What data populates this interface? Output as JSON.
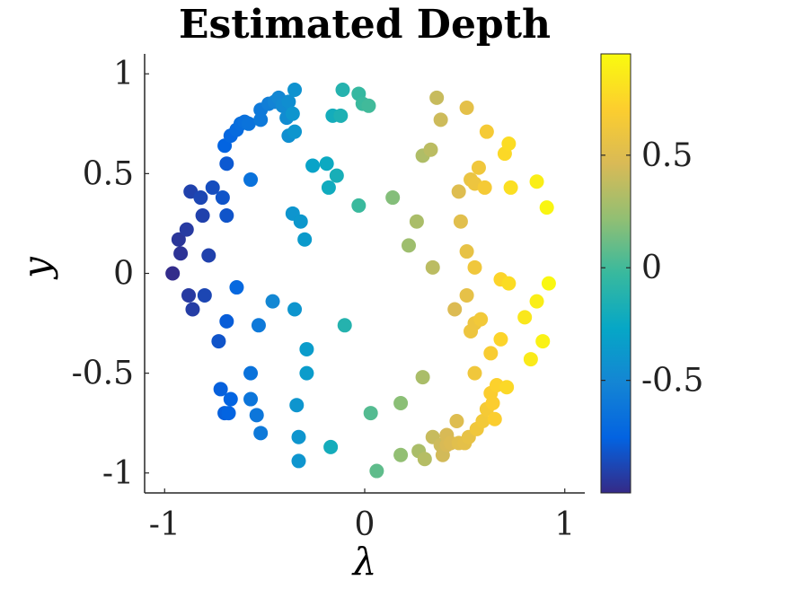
{
  "chart_data": {
    "type": "scatter",
    "title": "Estimated Depth",
    "xlabel": "λ",
    "ylabel": "y",
    "xlim": [
      -1.1,
      1.1
    ],
    "ylim": [
      -1.1,
      1.1
    ],
    "xticks": [
      -1,
      0,
      1
    ],
    "xtick_labels": [
      "-1",
      "0",
      "1"
    ],
    "yticks": [
      -1,
      -0.5,
      0,
      0.5,
      1
    ],
    "ytick_labels": [
      "-1",
      "-0.5",
      "0",
      "0.5",
      "1"
    ],
    "colorbar": {
      "range": [
        -1,
        0.95
      ],
      "ticks": [
        -0.5,
        0,
        0.5
      ],
      "tick_labels": [
        "-0.5",
        "0",
        "0.5"
      ],
      "colormap": "parula"
    },
    "grid": false,
    "points": [
      {
        "x": -0.96,
        "y": 0.0,
        "c": -0.99
      },
      {
        "x": -0.93,
        "y": 0.17,
        "c": -0.95
      },
      {
        "x": -0.92,
        "y": 0.1,
        "c": -0.96
      },
      {
        "x": -0.89,
        "y": 0.22,
        "c": -0.93
      },
      {
        "x": -0.88,
        "y": -0.11,
        "c": -0.93
      },
      {
        "x": -0.86,
        "y": -0.18,
        "c": -0.92
      },
      {
        "x": -0.87,
        "y": 0.41,
        "c": -0.9
      },
      {
        "x": -0.82,
        "y": 0.38,
        "c": -0.88
      },
      {
        "x": -0.81,
        "y": 0.29,
        "c": -0.9
      },
      {
        "x": -0.8,
        "y": -0.11,
        "c": -0.88
      },
      {
        "x": -0.78,
        "y": 0.09,
        "c": -0.9
      },
      {
        "x": -0.76,
        "y": 0.43,
        "c": -0.85
      },
      {
        "x": -0.73,
        "y": -0.34,
        "c": -0.82
      },
      {
        "x": -0.71,
        "y": 0.38,
        "c": -0.82
      },
      {
        "x": -0.69,
        "y": 0.29,
        "c": -0.82
      },
      {
        "x": -0.69,
        "y": 0.55,
        "c": -0.8
      },
      {
        "x": -0.69,
        "y": -0.24,
        "c": -0.78
      },
      {
        "x": -0.72,
        "y": -0.58,
        "c": -0.77
      },
      {
        "x": -0.7,
        "y": -0.7,
        "c": -0.77
      },
      {
        "x": -0.68,
        "y": -0.7,
        "c": -0.75
      },
      {
        "x": -0.67,
        "y": -0.63,
        "c": -0.75
      },
      {
        "x": -0.64,
        "y": -0.07,
        "c": -0.72
      },
      {
        "x": -0.7,
        "y": 0.64,
        "c": -0.75
      },
      {
        "x": -0.67,
        "y": 0.69,
        "c": -0.73
      },
      {
        "x": -0.64,
        "y": 0.72,
        "c": -0.7
      },
      {
        "x": -0.62,
        "y": 0.75,
        "c": -0.68
      },
      {
        "x": -0.6,
        "y": 0.76,
        "c": -0.66
      },
      {
        "x": -0.58,
        "y": 0.75,
        "c": -0.64
      },
      {
        "x": -0.57,
        "y": 0.47,
        "c": -0.65
      },
      {
        "x": -0.57,
        "y": -0.5,
        "c": -0.65
      },
      {
        "x": -0.57,
        "y": -0.63,
        "c": -0.63
      },
      {
        "x": -0.54,
        "y": -0.71,
        "c": -0.62
      },
      {
        "x": -0.52,
        "y": -0.8,
        "c": -0.6
      },
      {
        "x": -0.53,
        "y": -0.26,
        "c": -0.6
      },
      {
        "x": -0.52,
        "y": 0.77,
        "c": -0.6
      },
      {
        "x": -0.52,
        "y": 0.82,
        "c": -0.6
      },
      {
        "x": -0.48,
        "y": 0.85,
        "c": -0.56
      },
      {
        "x": -0.45,
        "y": 0.86,
        "c": -0.53
      },
      {
        "x": -0.43,
        "y": 0.88,
        "c": -0.5
      },
      {
        "x": -0.41,
        "y": 0.84,
        "c": -0.48
      },
      {
        "x": -0.39,
        "y": 0.78,
        "c": -0.46
      },
      {
        "x": -0.38,
        "y": 0.69,
        "c": -0.44
      },
      {
        "x": -0.38,
        "y": 0.86,
        "c": -0.45
      },
      {
        "x": -0.35,
        "y": 0.92,
        "c": -0.42
      },
      {
        "x": -0.35,
        "y": 0.71,
        "c": -0.4
      },
      {
        "x": -0.36,
        "y": 0.8,
        "c": -0.4
      },
      {
        "x": -0.36,
        "y": 0.3,
        "c": -0.4
      },
      {
        "x": -0.32,
        "y": 0.26,
        "c": -0.38
      },
      {
        "x": -0.3,
        "y": 0.17,
        "c": -0.36
      },
      {
        "x": -0.35,
        "y": -0.18,
        "c": -0.4
      },
      {
        "x": -0.46,
        "y": -0.14,
        "c": -0.5
      },
      {
        "x": -0.34,
        "y": -0.66,
        "c": -0.4
      },
      {
        "x": -0.33,
        "y": -0.82,
        "c": -0.4
      },
      {
        "x": -0.33,
        "y": -0.94,
        "c": -0.4
      },
      {
        "x": -0.29,
        "y": -0.38,
        "c": -0.35
      },
      {
        "x": -0.29,
        "y": -0.5,
        "c": -0.35
      },
      {
        "x": -0.26,
        "y": 0.54,
        "c": -0.3
      },
      {
        "x": -0.19,
        "y": 0.55,
        "c": -0.24
      },
      {
        "x": -0.18,
        "y": 0.43,
        "c": -0.22
      },
      {
        "x": -0.14,
        "y": 0.49,
        "c": -0.18
      },
      {
        "x": -0.16,
        "y": 0.79,
        "c": -0.2
      },
      {
        "x": -0.12,
        "y": 0.79,
        "c": -0.15
      },
      {
        "x": -0.11,
        "y": 0.92,
        "c": -0.12
      },
      {
        "x": -0.17,
        "y": -0.87,
        "c": -0.2
      },
      {
        "x": -0.1,
        "y": -0.26,
        "c": -0.12
      },
      {
        "x": -0.03,
        "y": 0.34,
        "c": -0.02
      },
      {
        "x": -0.03,
        "y": 0.9,
        "c": -0.04
      },
      {
        "x": -0.01,
        "y": 0.85,
        "c": -0.02
      },
      {
        "x": 0.02,
        "y": 0.84,
        "c": 0.0
      },
      {
        "x": 0.03,
        "y": -0.7,
        "c": 0.05
      },
      {
        "x": 0.06,
        "y": -0.99,
        "c": 0.08
      },
      {
        "x": 0.14,
        "y": 0.38,
        "c": 0.18
      },
      {
        "x": 0.18,
        "y": -0.65,
        "c": 0.2
      },
      {
        "x": 0.18,
        "y": -0.91,
        "c": 0.22
      },
      {
        "x": 0.22,
        "y": 0.14,
        "c": 0.26
      },
      {
        "x": 0.26,
        "y": 0.26,
        "c": 0.3
      },
      {
        "x": 0.27,
        "y": -0.89,
        "c": 0.3
      },
      {
        "x": 0.29,
        "y": -0.52,
        "c": 0.3
      },
      {
        "x": 0.29,
        "y": 0.59,
        "c": 0.32
      },
      {
        "x": 0.3,
        "y": -0.93,
        "c": 0.34
      },
      {
        "x": 0.33,
        "y": 0.62,
        "c": 0.36
      },
      {
        "x": 0.34,
        "y": 0.03,
        "c": 0.36
      },
      {
        "x": 0.34,
        "y": -0.82,
        "c": 0.4
      },
      {
        "x": 0.36,
        "y": 0.88,
        "c": 0.4
      },
      {
        "x": 0.38,
        "y": 0.77,
        "c": 0.42
      },
      {
        "x": 0.38,
        "y": -0.86,
        "c": 0.42
      },
      {
        "x": 0.39,
        "y": -0.91,
        "c": 0.44
      },
      {
        "x": 0.41,
        "y": -0.81,
        "c": 0.46
      },
      {
        "x": 0.41,
        "y": -0.86,
        "c": 0.46
      },
      {
        "x": 0.43,
        "y": -0.85,
        "c": 0.48
      },
      {
        "x": 0.45,
        "y": -0.18,
        "c": 0.48
      },
      {
        "x": 0.46,
        "y": -0.74,
        "c": 0.5
      },
      {
        "x": 0.47,
        "y": -0.85,
        "c": 0.52
      },
      {
        "x": 0.47,
        "y": 0.41,
        "c": 0.5
      },
      {
        "x": 0.48,
        "y": 0.26,
        "c": 0.52
      },
      {
        "x": 0.5,
        "y": -0.85,
        "c": 0.54
      },
      {
        "x": 0.51,
        "y": -0.11,
        "c": 0.55
      },
      {
        "x": 0.51,
        "y": 0.83,
        "c": 0.54
      },
      {
        "x": 0.52,
        "y": -0.82,
        "c": 0.56
      },
      {
        "x": 0.51,
        "y": 0.11,
        "c": 0.56
      },
      {
        "x": 0.53,
        "y": 0.47,
        "c": 0.58
      },
      {
        "x": 0.53,
        "y": -0.29,
        "c": 0.6
      },
      {
        "x": 0.55,
        "y": -0.25,
        "c": 0.6
      },
      {
        "x": 0.55,
        "y": 0.45,
        "c": 0.6
      },
      {
        "x": 0.55,
        "y": 0.03,
        "c": 0.62
      },
      {
        "x": 0.55,
        "y": -0.5,
        "c": 0.62
      },
      {
        "x": 0.56,
        "y": -0.78,
        "c": 0.62
      },
      {
        "x": 0.57,
        "y": 0.53,
        "c": 0.62
      },
      {
        "x": 0.58,
        "y": -0.23,
        "c": 0.64
      },
      {
        "x": 0.59,
        "y": -0.74,
        "c": 0.64
      },
      {
        "x": 0.6,
        "y": 0.43,
        "c": 0.66
      },
      {
        "x": 0.61,
        "y": -0.68,
        "c": 0.66
      },
      {
        "x": 0.61,
        "y": 0.71,
        "c": 0.66
      },
      {
        "x": 0.63,
        "y": -0.4,
        "c": 0.68
      },
      {
        "x": 0.63,
        "y": -0.6,
        "c": 0.7
      },
      {
        "x": 0.64,
        "y": -0.65,
        "c": 0.7
      },
      {
        "x": 0.65,
        "y": -0.73,
        "c": 0.7
      },
      {
        "x": 0.66,
        "y": -0.56,
        "c": 0.72
      },
      {
        "x": 0.68,
        "y": -0.33,
        "c": 0.74
      },
      {
        "x": 0.68,
        "y": -0.03,
        "c": 0.74
      },
      {
        "x": 0.7,
        "y": 0.6,
        "c": 0.76
      },
      {
        "x": 0.71,
        "y": -0.57,
        "c": 0.76
      },
      {
        "x": 0.72,
        "y": 0.65,
        "c": 0.78
      },
      {
        "x": 0.72,
        "y": -0.05,
        "c": 0.78
      },
      {
        "x": 0.73,
        "y": 0.43,
        "c": 0.8
      },
      {
        "x": 0.8,
        "y": -0.22,
        "c": 0.84
      },
      {
        "x": 0.83,
        "y": -0.43,
        "c": 0.86
      },
      {
        "x": 0.86,
        "y": 0.46,
        "c": 0.88
      },
      {
        "x": 0.86,
        "y": -0.14,
        "c": 0.88
      },
      {
        "x": 0.89,
        "y": -0.34,
        "c": 0.9
      },
      {
        "x": 0.91,
        "y": 0.33,
        "c": 0.92
      },
      {
        "x": 0.92,
        "y": -0.05,
        "c": 0.93
      }
    ]
  }
}
